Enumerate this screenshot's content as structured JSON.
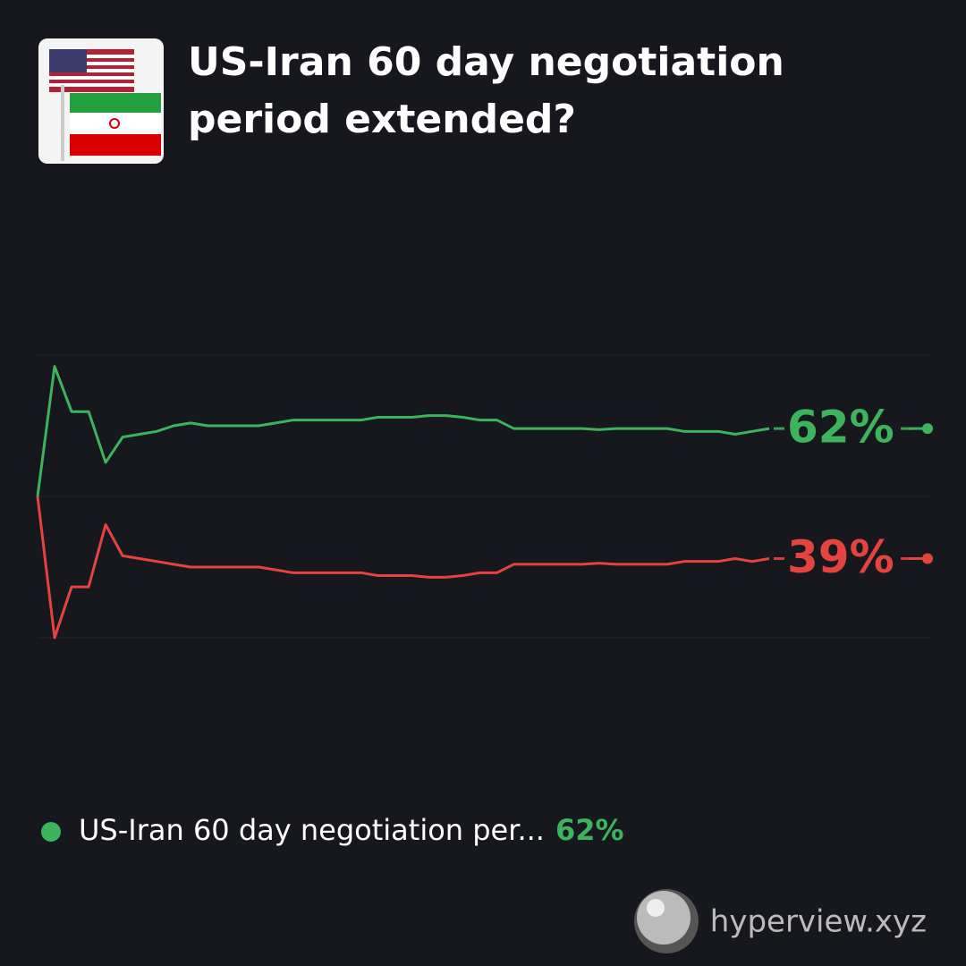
{
  "chart_data": {
    "type": "line",
    "title": "US-Iran 60 day negotiation period extended?",
    "ylim": [
      25,
      75
    ],
    "yticks": [
      25,
      50,
      75
    ],
    "show_tick_labels": false,
    "grid": true,
    "series": [
      {
        "name": "US-Iran 60 day negotiation per...",
        "color": "#3cb35c",
        "end_label": "62%",
        "values": [
          50,
          73,
          65,
          65,
          56,
          60.5,
          61,
          61.5,
          62.5,
          63,
          62.5,
          62.5,
          62.5,
          62.5,
          63,
          63.5,
          63.5,
          63.5,
          63.5,
          63.5,
          64,
          64,
          64,
          64.3,
          64.3,
          64,
          63.5,
          63.5,
          62,
          62,
          62,
          62,
          62,
          61.8,
          62,
          62,
          62,
          62,
          61.5,
          61.5,
          61.5,
          61,
          61.5,
          62
        ]
      },
      {
        "color": "#e5433f",
        "end_label": "39%",
        "values": [
          50,
          25,
          34,
          34,
          45,
          39.5,
          39,
          38.5,
          38,
          37.5,
          37.5,
          37.5,
          37.5,
          37.5,
          37,
          36.5,
          36.5,
          36.5,
          36.5,
          36.5,
          36,
          36,
          36,
          35.7,
          35.7,
          36,
          36.5,
          36.5,
          38,
          38,
          38,
          38,
          38,
          38.2,
          38,
          38,
          38,
          38,
          38.5,
          38.5,
          38.5,
          39,
          38.5,
          39
        ]
      }
    ]
  },
  "footer": {
    "brand": "hyperview.xyz"
  }
}
